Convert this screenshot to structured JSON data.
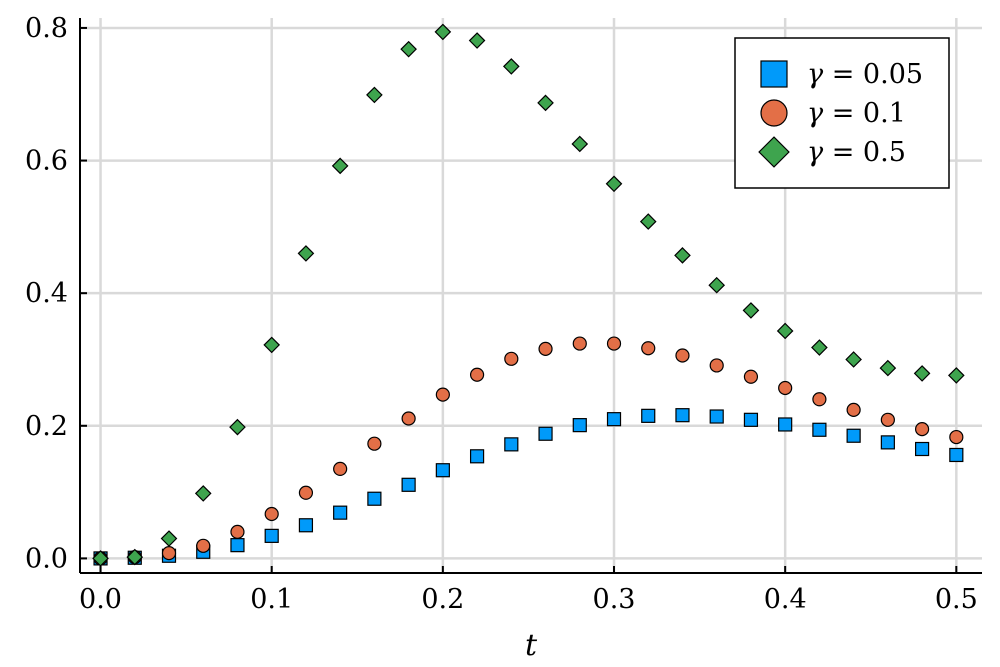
{
  "chart_data": {
    "type": "scatter",
    "title": "",
    "xlabel": "t",
    "ylabel": "",
    "xlim": [
      -0.012,
      0.515
    ],
    "ylim": [
      -0.022,
      0.815
    ],
    "grid": true,
    "legend_position": "top-right",
    "x_ticks": [
      0.0,
      0.1,
      0.2,
      0.3,
      0.4,
      0.5
    ],
    "x_tick_labels": [
      "0.0",
      "0.1",
      "0.2",
      "0.3",
      "0.4",
      "0.5"
    ],
    "y_ticks": [
      0.0,
      0.2,
      0.4,
      0.6,
      0.8
    ],
    "y_tick_labels": [
      "0.0",
      "0.2",
      "0.4",
      "0.6",
      "0.8"
    ],
    "x": [
      0.0,
      0.02,
      0.04,
      0.06,
      0.08,
      0.1,
      0.12,
      0.14,
      0.16,
      0.18,
      0.2,
      0.22,
      0.24,
      0.26,
      0.28,
      0.3,
      0.32,
      0.34,
      0.36,
      0.38,
      0.4,
      0.42,
      0.44,
      0.46,
      0.48,
      0.5
    ],
    "series": [
      {
        "name": "γ = 0.05",
        "marker": "square",
        "color": "#009AFA",
        "values": [
          0.0,
          0.001,
          0.004,
          0.01,
          0.02,
          0.034,
          0.05,
          0.069,
          0.09,
          0.111,
          0.133,
          0.154,
          0.172,
          0.188,
          0.201,
          0.21,
          0.215,
          0.216,
          0.214,
          0.209,
          0.202,
          0.194,
          0.185,
          0.175,
          0.165,
          0.156
        ]
      },
      {
        "name": "γ = 0.1",
        "marker": "circle",
        "color": "#E36F47",
        "values": [
          0.0,
          0.002,
          0.008,
          0.019,
          0.04,
          0.067,
          0.099,
          0.135,
          0.173,
          0.211,
          0.247,
          0.277,
          0.301,
          0.316,
          0.324,
          0.324,
          0.317,
          0.306,
          0.291,
          0.274,
          0.257,
          0.24,
          0.224,
          0.209,
          0.195,
          0.183
        ]
      },
      {
        "name": "γ = 0.5",
        "marker": "diamond",
        "color": "#3EA44E",
        "values": [
          0.0,
          0.002,
          0.03,
          0.098,
          0.198,
          0.322,
          0.46,
          0.592,
          0.699,
          0.768,
          0.794,
          0.781,
          0.742,
          0.687,
          0.625,
          0.565,
          0.508,
          0.457,
          0.412,
          0.374,
          0.343,
          0.318,
          0.3,
          0.287,
          0.279,
          0.276
        ]
      }
    ],
    "legend_entries": [
      {
        "prefix": "γ",
        "rest": " = 0.05"
      },
      {
        "prefix": "γ",
        "rest": " = 0.1"
      },
      {
        "prefix": "γ",
        "rest": " = 0.5"
      }
    ]
  }
}
